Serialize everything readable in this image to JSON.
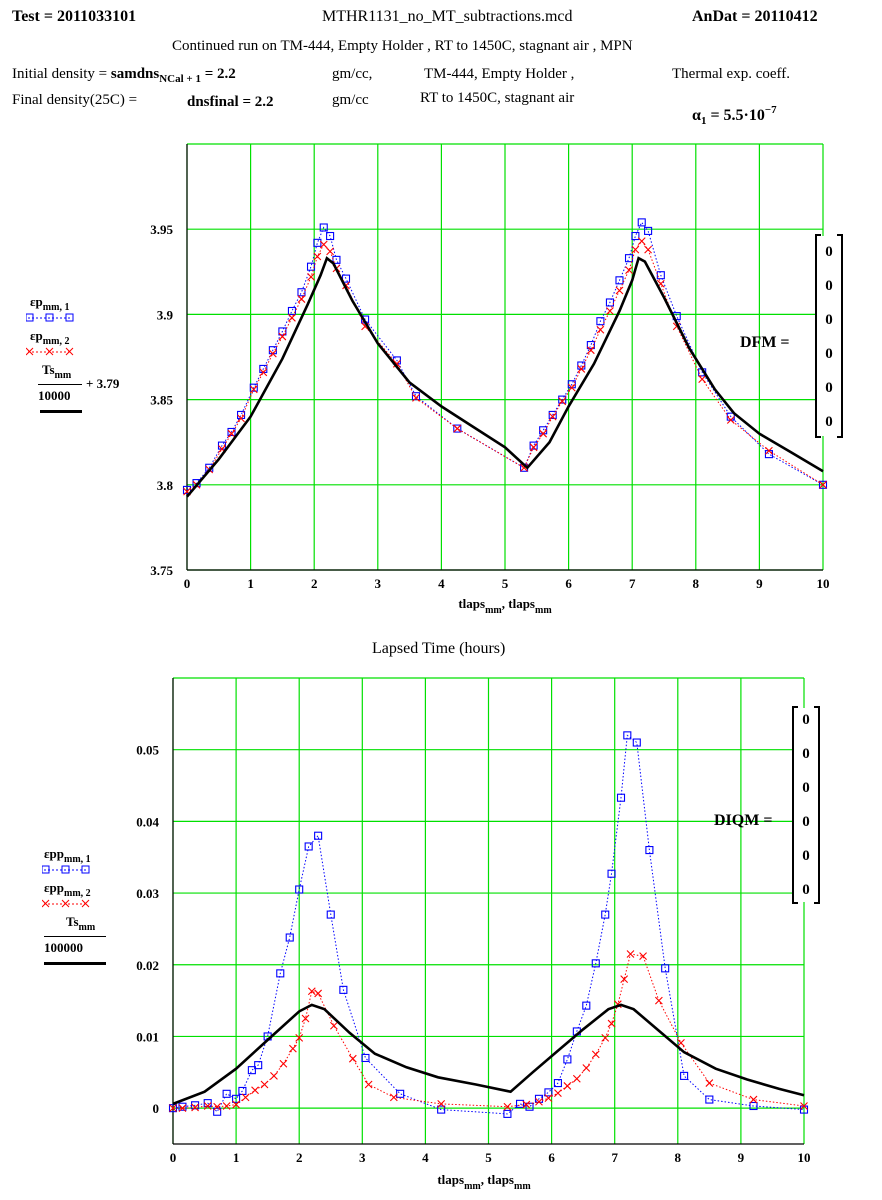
{
  "header": {
    "test_label": "Test = 2011033101",
    "filename": "MTHR1131_no_MT_subtractions.mcd",
    "andat_label": "AnDat = 20110412",
    "continued_run": "Continued run on  TM-444, Empty Holder , RT to 1450C, stagnant air , MPN",
    "initial_density_prefix": "Initial density = ",
    "initial_density_var": "samdns",
    "initial_density_sub": "NCal + 1",
    "initial_density_val": " = 2.2",
    "unit1": "gm/cc,",
    "sample_line1": "TM-444, Empty Holder ,",
    "thermal_label": "Thermal exp. coeff.",
    "final_density_prefix": "Final density(25C) =",
    "final_density_var": "dnsfinal",
    "final_density_val": "= 2.2",
    "unit2": "gm/cc",
    "sample_line2": "RT to 1450C, stagnant air",
    "alpha_sym": "α",
    "alpha_sub": "1",
    "alpha_eq": " = 5.5·10",
    "alpha_exp": "−7"
  },
  "between_label": "Lapsed Time (hours)",
  "colors": {
    "grid": "#00e000",
    "blue": "#0000ff",
    "red": "#ff0000",
    "black": "#000000"
  },
  "chart_data": [
    {
      "type": "line",
      "xlabel": "tlaps_mm, tlaps_mm",
      "xlabel_main": "tlaps",
      "xlabel_sub": "mm",
      "xlim": [
        0,
        10
      ],
      "ylim": [
        3.75,
        4.0
      ],
      "x_ticks": [
        0,
        1,
        2,
        3,
        4,
        5,
        6,
        7,
        8,
        9,
        10
      ],
      "x_tick_labels": [
        "0",
        "1",
        "2",
        "3",
        "4",
        "5",
        "6",
        "7",
        "8",
        "9",
        "10"
      ],
      "y_ticks": [
        3.75,
        3.8,
        3.85,
        3.9,
        3.95
      ],
      "y_tick_labels": [
        "3.75",
        "3.8",
        "3.85",
        "3.9",
        "3.95"
      ],
      "grid": true,
      "legend": [
        {
          "main": "εp",
          "sub": "mm, 1"
        },
        {
          "main": "εp",
          "sub": "mm, 2"
        },
        {
          "main": "Ts",
          "sub": "mm",
          "denominator": "10000",
          "suffix": "+ 3.79"
        }
      ],
      "matrix": {
        "label": "DFM =",
        "values": [
          "0",
          "0",
          "0",
          "0",
          "0",
          "0"
        ]
      },
      "series": [
        {
          "name": "εp_mm,1",
          "color": "#0000ff",
          "marker": "square",
          "dash": "dotted",
          "x": [
            0.0,
            0.15,
            0.35,
            0.55,
            0.7,
            0.85,
            1.05,
            1.2,
            1.35,
            1.5,
            1.65,
            1.8,
            1.95,
            2.05,
            2.15,
            2.25,
            2.35,
            2.5,
            2.8,
            3.3,
            3.6,
            4.25,
            5.3,
            5.45,
            5.6,
            5.75,
            5.9,
            6.05,
            6.2,
            6.35,
            6.5,
            6.65,
            6.8,
            6.95,
            7.05,
            7.15,
            7.25,
            7.45,
            7.7,
            8.1,
            8.55,
            9.15,
            10.0
          ],
          "y": [
            3.797,
            3.801,
            3.81,
            3.823,
            3.831,
            3.841,
            3.857,
            3.868,
            3.879,
            3.89,
            3.902,
            3.913,
            3.928,
            3.942,
            3.951,
            3.946,
            3.932,
            3.921,
            3.897,
            3.873,
            3.852,
            3.833,
            3.81,
            3.823,
            3.832,
            3.841,
            3.85,
            3.859,
            3.87,
            3.882,
            3.896,
            3.907,
            3.92,
            3.933,
            3.946,
            3.954,
            3.949,
            3.923,
            3.899,
            3.866,
            3.84,
            3.818,
            3.8
          ]
        },
        {
          "name": "εp_mm,2",
          "color": "#ff0000",
          "marker": "x",
          "dash": "dotted",
          "x": [
            0.0,
            0.15,
            0.35,
            0.55,
            0.7,
            0.85,
            1.05,
            1.2,
            1.35,
            1.5,
            1.65,
            1.8,
            1.95,
            2.05,
            2.15,
            2.25,
            2.35,
            2.5,
            2.8,
            3.3,
            3.6,
            4.25,
            5.3,
            5.45,
            5.6,
            5.75,
            5.9,
            6.05,
            6.2,
            6.35,
            6.5,
            6.65,
            6.8,
            6.95,
            7.05,
            7.15,
            7.25,
            7.45,
            7.7,
            8.1,
            8.55,
            9.15,
            10.0
          ],
          "y": [
            3.796,
            3.8,
            3.809,
            3.821,
            3.83,
            3.839,
            3.856,
            3.866,
            3.877,
            3.887,
            3.898,
            3.909,
            3.922,
            3.934,
            3.941,
            3.937,
            3.927,
            3.917,
            3.893,
            3.871,
            3.851,
            3.833,
            3.81,
            3.822,
            3.83,
            3.84,
            3.849,
            3.857,
            3.868,
            3.879,
            3.891,
            3.902,
            3.914,
            3.926,
            3.938,
            3.943,
            3.938,
            3.918,
            3.893,
            3.862,
            3.838,
            3.82,
            3.8
          ]
        },
        {
          "name": "Ts_mm/10000 + 3.79",
          "color": "#000000",
          "marker": "none",
          "dash": "solid",
          "x": [
            0.0,
            0.5,
            1.0,
            1.5,
            1.9,
            2.1,
            2.2,
            2.3,
            2.6,
            3.0,
            3.5,
            4.0,
            4.5,
            5.0,
            5.35,
            5.7,
            6.0,
            6.4,
            6.8,
            7.0,
            7.1,
            7.2,
            7.5,
            7.9,
            8.3,
            8.6,
            9.0,
            9.5,
            10.0
          ],
          "y": [
            3.793,
            3.815,
            3.84,
            3.874,
            3.906,
            3.923,
            3.933,
            3.93,
            3.908,
            3.883,
            3.86,
            3.846,
            3.834,
            3.822,
            3.81,
            3.825,
            3.846,
            3.871,
            3.902,
            3.92,
            3.933,
            3.931,
            3.91,
            3.88,
            3.856,
            3.842,
            3.83,
            3.819,
            3.808
          ]
        }
      ]
    },
    {
      "type": "line",
      "xlabel": "tlaps_mm, tlaps_mm",
      "xlabel_main": "tlaps",
      "xlabel_sub": "mm",
      "xlim": [
        0,
        10
      ],
      "ylim": [
        -0.005,
        0.06
      ],
      "x_ticks": [
        0,
        1,
        2,
        3,
        4,
        5,
        6,
        7,
        8,
        9,
        10
      ],
      "x_tick_labels": [
        "0",
        "1",
        "2",
        "3",
        "4",
        "5",
        "6",
        "7",
        "8",
        "9",
        "10"
      ],
      "y_ticks": [
        0,
        0.01,
        0.02,
        0.03,
        0.04,
        0.05
      ],
      "y_tick_labels": [
        "0",
        "0.01",
        "0.02",
        "0.03",
        "0.04",
        "0.05"
      ],
      "grid": true,
      "legend": [
        {
          "main": "εpp",
          "sub": "mm, 1"
        },
        {
          "main": "εpp",
          "sub": "mm, 2"
        },
        {
          "main": "Ts",
          "sub": "mm",
          "denominator": "100000",
          "suffix": ""
        }
      ],
      "matrix": {
        "label": "DIQM =",
        "values": [
          "0",
          "0",
          "0",
          "0",
          "0",
          "0"
        ]
      },
      "series": [
        {
          "name": "εpp_mm,1",
          "color": "#0000ff",
          "marker": "square",
          "dash": "dotted",
          "x": [
            0.0,
            0.15,
            0.35,
            0.55,
            0.7,
            0.85,
            1.0,
            1.1,
            1.25,
            1.35,
            1.5,
            1.7,
            1.85,
            2.0,
            2.15,
            2.3,
            2.5,
            2.7,
            3.05,
            3.6,
            4.25,
            5.3,
            5.5,
            5.65,
            5.8,
            5.95,
            6.1,
            6.25,
            6.4,
            6.55,
            6.7,
            6.85,
            6.95,
            7.1,
            7.2,
            7.35,
            7.55,
            7.8,
            8.1,
            8.5,
            9.2,
            10.0
          ],
          "y": [
            0.0,
            0.0002,
            0.0004,
            0.0007,
            -0.0005,
            0.002,
            0.0013,
            0.0024,
            0.0053,
            0.006,
            0.01,
            0.0188,
            0.0238,
            0.0305,
            0.0365,
            0.038,
            0.027,
            0.0165,
            0.007,
            0.002,
            -0.0002,
            -0.0008,
            0.0006,
            0.0002,
            0.0013,
            0.0022,
            0.0035,
            0.0068,
            0.0107,
            0.0143,
            0.0202,
            0.027,
            0.0327,
            0.0433,
            0.052,
            0.051,
            0.036,
            0.0195,
            0.0045,
            0.0012,
            0.0003,
            -0.0002
          ]
        },
        {
          "name": "εpp_mm,2",
          "color": "#ff0000",
          "marker": "x",
          "dash": "dotted",
          "x": [
            0.0,
            0.15,
            0.35,
            0.55,
            0.7,
            0.85,
            1.0,
            1.15,
            1.3,
            1.45,
            1.6,
            1.75,
            1.9,
            2.0,
            2.1,
            2.2,
            2.3,
            2.55,
            2.85,
            3.1,
            3.5,
            4.25,
            5.3,
            5.6,
            5.8,
            5.95,
            6.1,
            6.25,
            6.4,
            6.55,
            6.7,
            6.85,
            6.95,
            7.05,
            7.15,
            7.25,
            7.45,
            7.7,
            8.05,
            8.5,
            9.2,
            10.0
          ],
          "y": [
            0.0,
            0.0,
            0.0001,
            0.0003,
            0.0002,
            0.0003,
            0.0005,
            0.0015,
            0.0025,
            0.0033,
            0.0045,
            0.0062,
            0.0083,
            0.0098,
            0.0125,
            0.0163,
            0.016,
            0.0115,
            0.0069,
            0.0033,
            0.0015,
            0.0006,
            0.0002,
            0.0005,
            0.0009,
            0.0014,
            0.0021,
            0.0031,
            0.0041,
            0.0056,
            0.0075,
            0.0098,
            0.0118,
            0.0145,
            0.018,
            0.0215,
            0.0212,
            0.015,
            0.0091,
            0.0035,
            0.0012,
            0.0003
          ]
        },
        {
          "name": "Ts_mm/100000",
          "color": "#000000",
          "marker": "none",
          "dash": "solid",
          "x": [
            0.0,
            0.5,
            1.0,
            1.5,
            2.0,
            2.2,
            2.4,
            2.8,
            3.2,
            3.7,
            4.2,
            4.8,
            5.35,
            5.7,
            6.1,
            6.5,
            6.9,
            7.1,
            7.3,
            7.7,
            8.1,
            8.6,
            9.1,
            9.6,
            10.0
          ],
          "y": [
            0.0006,
            0.0023,
            0.0055,
            0.0095,
            0.0135,
            0.0144,
            0.0138,
            0.0105,
            0.0076,
            0.0057,
            0.0043,
            0.0033,
            0.0023,
            0.005,
            0.008,
            0.011,
            0.0138,
            0.0144,
            0.0138,
            0.0108,
            0.0078,
            0.0055,
            0.004,
            0.0027,
            0.0018
          ]
        }
      ]
    }
  ]
}
